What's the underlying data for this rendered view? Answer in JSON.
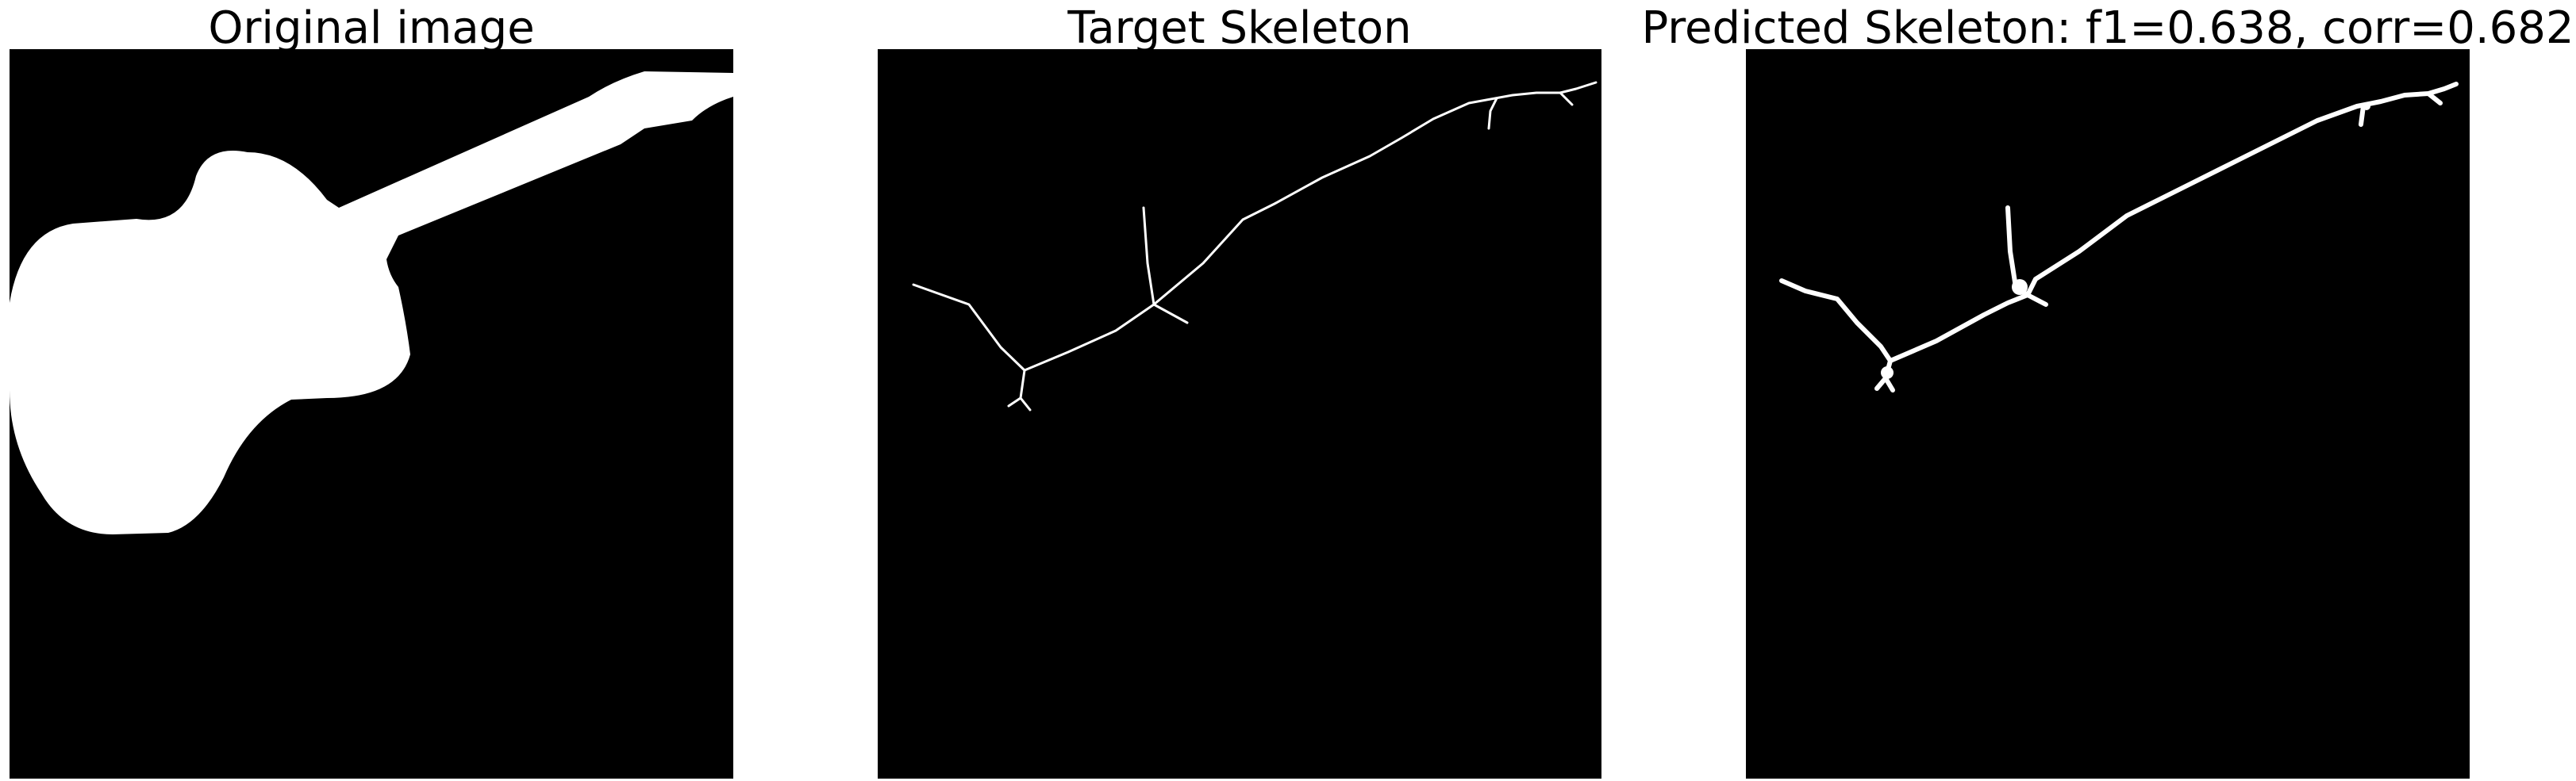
{
  "panels": [
    {
      "title": "Original image"
    },
    {
      "title": "Target Skeleton"
    },
    {
      "title": "Predicted Skeleton: f1=0.638, corr=0.682"
    }
  ],
  "colors": {
    "background": "#000000",
    "foreground": "#ffffff",
    "page": "#ffffff"
  }
}
